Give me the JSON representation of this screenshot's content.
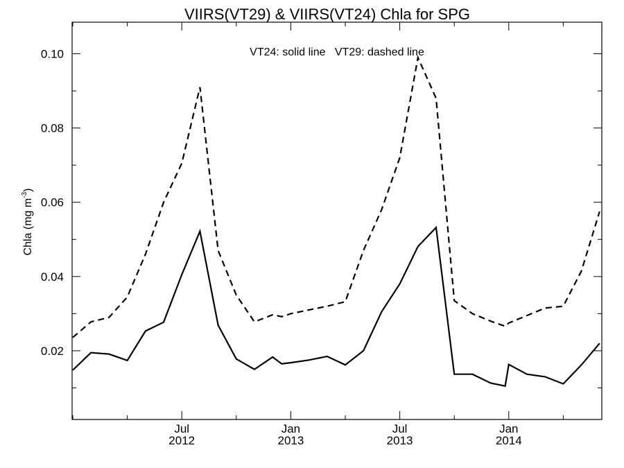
{
  "chart_data": {
    "type": "line",
    "title": "VIIRS(VT29) & VIIRS(VT24)  Chla for SPG",
    "ylabel": "Chla (mg m",
    "ylabel_sup": "-3",
    "ylabel_close": ")",
    "annotation": "VT24: solid line   VT29: dashed line",
    "ylim": [
      0.0015,
      0.1085
    ],
    "xlim": [
      "2012-01-01",
      "2014-12-01"
    ],
    "grid": false,
    "yticks": [
      {
        "value": 0.02,
        "label": "0.02"
      },
      {
        "value": 0.04,
        "label": "0.04"
      },
      {
        "value": 0.06,
        "label": "0.06"
      },
      {
        "value": 0.08,
        "label": "0.08"
      },
      {
        "value": 0.1,
        "label": "0.10"
      }
    ],
    "xticks": [
      {
        "month": 6,
        "label1": "Jul",
        "label2": "2012"
      },
      {
        "month": 12,
        "label1": "Jan",
        "label2": "2013"
      },
      {
        "month": 18,
        "label1": "Jul",
        "label2": "2013"
      },
      {
        "month": 24,
        "label1": "Jan",
        "label2": "2014"
      }
    ],
    "series": [
      {
        "name": "VT24",
        "style": "solid",
        "x": [
          0,
          1,
          2,
          3,
          4,
          5,
          6,
          7,
          8,
          9,
          10,
          11,
          11.5,
          12,
          13,
          14,
          15,
          16,
          17,
          18,
          19,
          20,
          21,
          22,
          23,
          23.8,
          24,
          25,
          26,
          27,
          28,
          29
        ],
        "values": [
          0.0148,
          0.0195,
          0.0191,
          0.0174,
          0.0253,
          0.0277,
          0.0405,
          0.0522,
          0.0269,
          0.0178,
          0.015,
          0.0183,
          0.0165,
          0.0168,
          0.0175,
          0.0185,
          0.0162,
          0.02,
          0.0305,
          0.038,
          0.0481,
          0.0532,
          0.0137,
          0.0137,
          0.0113,
          0.0105,
          0.0163,
          0.0137,
          0.013,
          0.0111,
          0.0162,
          0.022
        ]
      },
      {
        "name": "VT29",
        "style": "dashed",
        "x": [
          0,
          1,
          2,
          3,
          4,
          5,
          6,
          7,
          8,
          9,
          10,
          11,
          11.5,
          12,
          13,
          14,
          15,
          16,
          17,
          18,
          19,
          20,
          21,
          22,
          23,
          23.8,
          24,
          25,
          26,
          27,
          28,
          29
        ],
        "values": [
          0.0236,
          0.0278,
          0.029,
          0.0345,
          0.046,
          0.06,
          0.0705,
          0.091,
          0.047,
          0.035,
          0.0278,
          0.0297,
          0.0292,
          0.03,
          0.031,
          0.032,
          0.0332,
          0.047,
          0.058,
          0.072,
          0.099,
          0.088,
          0.0335,
          0.03,
          0.028,
          0.0266,
          0.0275,
          0.0295,
          0.0315,
          0.032,
          0.0415,
          0.0575
        ]
      }
    ]
  }
}
